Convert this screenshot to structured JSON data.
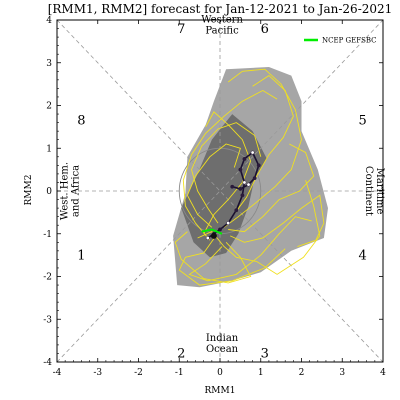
{
  "chart_data": {
    "type": "scatter",
    "title": "[RMM1, RMM2] forecast for Jan-12-2021 to Jan-26-2021",
    "xlabel": "RMM1",
    "ylabel": "RMM2",
    "xlim": [
      -4,
      4
    ],
    "ylim": [
      -4,
      4
    ],
    "xticks": [
      "-4",
      "-3",
      "-2",
      "-1",
      "0",
      "1",
      "2",
      "3",
      "4"
    ],
    "yticks": [
      "-4",
      "-3",
      "-2",
      "-1",
      "0",
      "1",
      "2",
      "3",
      "4"
    ],
    "phases": [
      {
        "label": "1",
        "x": -3.4,
        "y": -1.6
      },
      {
        "label": "2",
        "x": -0.95,
        "y": -3.9
      },
      {
        "label": "3",
        "x": 1.1,
        "y": -3.9
      },
      {
        "label": "4",
        "x": 3.5,
        "y": -1.6
      },
      {
        "label": "5",
        "x": 3.5,
        "y": 1.55
      },
      {
        "label": "6",
        "x": 1.1,
        "y": 3.7
      },
      {
        "label": "7",
        "x": -0.95,
        "y": 3.7
      },
      {
        "label": "8",
        "x": -3.4,
        "y": 1.55
      }
    ],
    "regions": [
      {
        "lines": [
          "Western",
          "Pacific"
        ],
        "x": 0.05,
        "y": 3.85,
        "rotate": 0
      },
      {
        "lines": [
          "Indian",
          "Ocean"
        ],
        "x": 0.05,
        "y": -3.6,
        "rotate": 0
      },
      {
        "lines": [
          "Maritime",
          "Continent"
        ],
        "x": 3.75,
        "y": 0.0,
        "rotate": 90
      },
      {
        "lines": [
          "West. Hem.",
          "and Africa"
        ],
        "x": -3.65,
        "y": 0.0,
        "rotate": -90
      }
    ],
    "legend": [
      {
        "name": "NCEP GEFSBC",
        "color": "#00ee00"
      }
    ],
    "legend_position": "top-right",
    "unit_circle_radius": 1,
    "outer_spread": [
      [
        0.15,
        2.85
      ],
      [
        1.2,
        2.9
      ],
      [
        1.75,
        2.7
      ],
      [
        2.0,
        2.1
      ],
      [
        2.0,
        1.4
      ],
      [
        2.4,
        0.5
      ],
      [
        2.65,
        -0.4
      ],
      [
        2.55,
        -1.1
      ],
      [
        1.75,
        -1.4
      ],
      [
        1.0,
        -1.9
      ],
      [
        0.3,
        -2.1
      ],
      [
        -0.5,
        -2.25
      ],
      [
        -1.05,
        -2.2
      ],
      [
        -1.15,
        -1.05
      ],
      [
        -0.85,
        -0.05
      ],
      [
        -0.8,
        0.8
      ],
      [
        -0.35,
        1.55
      ],
      [
        -0.15,
        2.1
      ]
    ],
    "inner_spread": [
      [
        0.3,
        1.8
      ],
      [
        0.8,
        1.4
      ],
      [
        1.15,
        0.75
      ],
      [
        0.85,
        0.3
      ],
      [
        0.7,
        -0.35
      ],
      [
        0.45,
        -1.0
      ],
      [
        0.15,
        -1.45
      ],
      [
        -0.25,
        -1.55
      ],
      [
        -0.65,
        -1.2
      ],
      [
        -0.95,
        -0.4
      ],
      [
        -0.55,
        0.4
      ],
      [
        -0.2,
        1.2
      ]
    ],
    "member_tracks": [
      [
        [
          -0.55,
          -1.1
        ],
        [
          -0.2,
          -0.95
        ],
        [
          0.1,
          -1.3
        ],
        [
          0.4,
          -1.55
        ],
        [
          0.9,
          -1.65
        ],
        [
          1.4,
          -1.95
        ],
        [
          2.05,
          -1.55
        ],
        [
          2.45,
          -1.05
        ],
        [
          2.3,
          -0.35
        ],
        [
          2.1,
          0.25
        ]
      ],
      [
        [
          -0.1,
          -1.05
        ],
        [
          -0.4,
          -1.45
        ],
        [
          -0.85,
          -1.55
        ],
        [
          -1.0,
          -1.85
        ],
        [
          -0.5,
          -2.2
        ],
        [
          0.3,
          -2.1
        ],
        [
          1.1,
          -1.8
        ],
        [
          1.6,
          -1.35
        ]
      ],
      [
        [
          0.1,
          -0.85
        ],
        [
          0.45,
          -0.6
        ],
        [
          0.85,
          -0.3
        ],
        [
          1.35,
          0.1
        ],
        [
          1.75,
          0.5
        ],
        [
          2.0,
          1.2
        ],
        [
          1.85,
          1.9
        ],
        [
          1.5,
          2.5
        ],
        [
          1.1,
          2.85
        ],
        [
          0.55,
          2.8
        ],
        [
          0.2,
          2.55
        ]
      ],
      [
        [
          -0.05,
          -0.75
        ],
        [
          -0.3,
          -0.4
        ],
        [
          -0.55,
          0.0
        ],
        [
          -0.7,
          0.5
        ],
        [
          -0.45,
          1.05
        ],
        [
          -0.05,
          1.45
        ],
        [
          0.4,
          1.6
        ],
        [
          0.85,
          1.3
        ],
        [
          1.0,
          0.8
        ]
      ],
      [
        [
          0.25,
          -1.05
        ],
        [
          0.6,
          -1.2
        ],
        [
          1.05,
          -1.1
        ],
        [
          1.55,
          -0.75
        ],
        [
          2.0,
          -0.4
        ],
        [
          2.45,
          -0.1
        ],
        [
          2.55,
          -0.75
        ],
        [
          2.35,
          -1.15
        ],
        [
          1.9,
          -1.3
        ]
      ],
      [
        [
          -0.25,
          -1.15
        ],
        [
          -0.6,
          -0.75
        ],
        [
          -0.85,
          -0.35
        ],
        [
          -0.9,
          0.25
        ],
        [
          -0.7,
          0.85
        ],
        [
          -0.35,
          1.35
        ],
        [
          0.1,
          1.75
        ],
        [
          0.55,
          2.1
        ],
        [
          1.05,
          2.35
        ],
        [
          1.4,
          2.15
        ]
      ],
      [
        [
          0.15,
          -1.2
        ],
        [
          0.5,
          -1.55
        ],
        [
          0.75,
          -2.0
        ],
        [
          0.2,
          -2.15
        ],
        [
          -0.4,
          -2.05
        ],
        [
          -0.95,
          -1.6
        ],
        [
          -1.1,
          -1.2
        ],
        [
          -0.8,
          -0.95
        ]
      ],
      [
        [
          0.3,
          -0.6
        ],
        [
          0.65,
          -0.15
        ],
        [
          0.9,
          0.35
        ],
        [
          1.2,
          0.85
        ],
        [
          1.55,
          1.25
        ],
        [
          1.8,
          1.75
        ],
        [
          1.6,
          2.35
        ],
        [
          1.2,
          2.7
        ],
        [
          0.8,
          2.45
        ]
      ],
      [
        [
          -0.4,
          -1.0
        ],
        [
          -0.15,
          -0.55
        ],
        [
          0.2,
          -0.2
        ],
        [
          0.55,
          0.2
        ],
        [
          0.75,
          0.7
        ],
        [
          0.55,
          1.2
        ],
        [
          0.2,
          1.55
        ],
        [
          -0.15,
          1.85
        ],
        [
          -0.35,
          1.5
        ]
      ],
      [
        [
          0.05,
          -1.3
        ],
        [
          -0.35,
          -1.7
        ],
        [
          -0.75,
          -1.95
        ],
        [
          -0.3,
          -2.1
        ],
        [
          0.4,
          -1.95
        ],
        [
          1.0,
          -1.5
        ],
        [
          1.45,
          -1.0
        ],
        [
          1.85,
          -0.6
        ],
        [
          2.25,
          -0.7
        ]
      ],
      [
        [
          0.2,
          -0.9
        ],
        [
          0.6,
          -0.95
        ],
        [
          1.05,
          -0.6
        ],
        [
          1.45,
          -0.2
        ],
        [
          1.95,
          0.0
        ],
        [
          2.3,
          0.35
        ],
        [
          2.1,
          0.9
        ],
        [
          1.7,
          1.1
        ]
      ],
      [
        [
          -0.2,
          -0.85
        ],
        [
          -0.55,
          -0.55
        ],
        [
          -0.8,
          -0.1
        ],
        [
          -0.6,
          0.35
        ],
        [
          -0.25,
          0.8
        ],
        [
          0.15,
          1.1
        ],
        [
          0.5,
          1.0
        ],
        [
          0.35,
          0.55
        ]
      ]
    ],
    "ensemble_mean": [
      [
        -0.3,
        -1.1
      ],
      [
        -0.15,
        -1.0
      ],
      [
        0.0,
        -0.9
      ],
      [
        0.2,
        -0.75
      ],
      [
        0.4,
        -0.45
      ],
      [
        0.55,
        -0.1
      ],
      [
        0.6,
        0.2
      ],
      [
        0.5,
        0.5
      ],
      [
        0.6,
        0.75
      ],
      [
        0.8,
        0.9
      ],
      [
        0.95,
        0.6
      ],
      [
        0.85,
        0.3
      ],
      [
        0.7,
        0.15
      ],
      [
        0.5,
        0.05
      ],
      [
        0.3,
        0.1
      ]
    ],
    "start_point": [
      -0.15,
      -1.05
    ]
  }
}
